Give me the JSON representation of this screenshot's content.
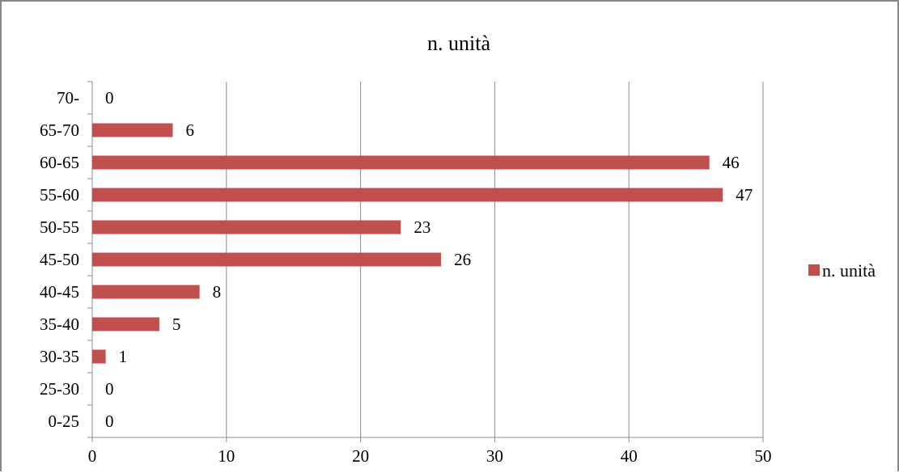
{
  "chart_data": {
    "type": "bar",
    "orientation": "horizontal",
    "title": "n. unità",
    "categories": [
      "0-25",
      "25-30",
      "30-35",
      "35-40",
      "40-45",
      "45-50",
      "50-55",
      "55-60",
      "60-65",
      "65-70",
      "70-"
    ],
    "series": [
      {
        "name": "n. unità",
        "values": [
          0,
          0,
          1,
          5,
          8,
          26,
          23,
          47,
          46,
          6,
          0
        ],
        "color": "#C0504D"
      }
    ],
    "xlim": [
      0,
      50
    ],
    "xticks": [
      0,
      10,
      20,
      30,
      40,
      50
    ],
    "xlabel": "",
    "ylabel": "",
    "grid": "vertical",
    "data_labels": true,
    "legend_position": "right"
  }
}
